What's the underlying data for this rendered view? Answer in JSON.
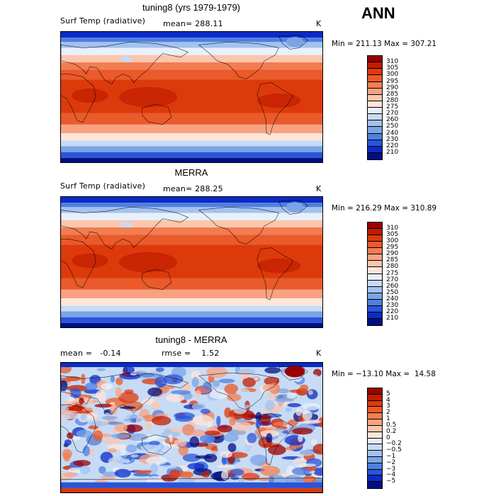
{
  "season": "ANN",
  "panels": [
    {
      "id": "model",
      "title": "tuning8 (yrs 1979-1979)",
      "left_label": "Surf Temp (radiative)",
      "center_label": "mean= 288.11",
      "units": "K",
      "minmax": "Min = 211.13 Max = 307.21",
      "colorbar": {
        "ticks": [
          "310",
          "305",
          "300",
          "295",
          "290",
          "285",
          "280",
          "275",
          "270",
          "260",
          "250",
          "240",
          "230",
          "220",
          "210"
        ],
        "colors": [
          "#9b0000",
          "#c11d00",
          "#dd3a0c",
          "#ea5a2a",
          "#f27d52",
          "#f8a283",
          "#fbc6ae",
          "#fde6d9",
          "#e8f0fb",
          "#c7dbf5",
          "#a3c2ee",
          "#7ba4e6",
          "#4f7fe0",
          "#2a55d8",
          "#0a2bc6",
          "#000f80"
        ]
      },
      "field": "temp"
    },
    {
      "id": "obs",
      "title": "MERRA",
      "left_label": "Surf Temp (radiative)",
      "center_label": "mean= 288.25",
      "units": "K",
      "minmax": "Min = 216.29 Max = 310.89",
      "colorbar": {
        "ticks": [
          "310",
          "305",
          "300",
          "295",
          "290",
          "285",
          "280",
          "275",
          "270",
          "260",
          "250",
          "240",
          "230",
          "220",
          "210"
        ],
        "colors": [
          "#9b0000",
          "#c11d00",
          "#dd3a0c",
          "#ea5a2a",
          "#f27d52",
          "#f8a283",
          "#fbc6ae",
          "#fde6d9",
          "#e8f0fb",
          "#c7dbf5",
          "#a3c2ee",
          "#7ba4e6",
          "#4f7fe0",
          "#2a55d8",
          "#0a2bc6",
          "#000f80"
        ]
      },
      "field": "temp"
    },
    {
      "id": "diff",
      "title": "tuning8 - MERRA",
      "left_label": "mean =   -0.14",
      "center_label": "rmse =    1.52",
      "units": "K",
      "minmax": "Min = −13.10 Max =  14.58",
      "colorbar": {
        "ticks": [
          "5",
          "4",
          "3",
          "2",
          "1",
          "0.5",
          "0.2",
          "0",
          "−0.2",
          "−0.5",
          "−1",
          "−2",
          "−3",
          "−4",
          "−5"
        ],
        "colors": [
          "#9b0000",
          "#c11d00",
          "#dd3a0c",
          "#ea5a2a",
          "#f27d52",
          "#f8a283",
          "#fbc6ae",
          "#fde6d9",
          "#e8f0fb",
          "#c7dbf5",
          "#a3c2ee",
          "#7ba4e6",
          "#4f7fe0",
          "#2a55d8",
          "#0a2bc6",
          "#000f80"
        ]
      },
      "field": "diff"
    }
  ]
}
